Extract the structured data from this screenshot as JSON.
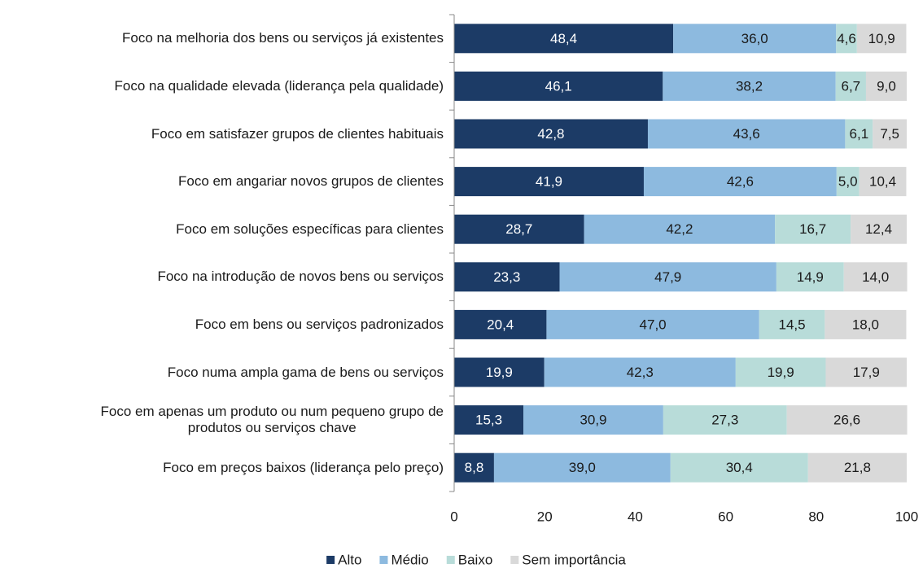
{
  "chart_data": {
    "type": "stacked_barh",
    "categories": [
      "Foco na melhoria dos bens ou serviços já existentes",
      "Foco na qualidade elevada (liderança pela qualidade)",
      "Foco em satisfazer grupos de clientes habituais",
      "Foco em angariar novos grupos de clientes",
      "Foco em soluções específicas para clientes",
      "Foco na introdução de novos bens ou serviços",
      "Foco em bens ou serviços padronizados",
      "Foco numa ampla gama de bens ou serviços",
      "Foco em apenas um produto ou num pequeno grupo de\nprodutos ou serviços chave",
      "Foco em preços baixos (liderança pelo preço)"
    ],
    "series": [
      {
        "name": "Alto",
        "color": "#1c3b66",
        "text_color": "#ffffff",
        "values": [
          48.4,
          46.1,
          42.8,
          41.9,
          28.7,
          23.3,
          20.4,
          19.9,
          15.3,
          8.8
        ],
        "value_labels": [
          "48,4",
          "46,1",
          "42,8",
          "41,9",
          "28,7",
          "23,3",
          "20,4",
          "19,9",
          "15,3",
          "8,8"
        ]
      },
      {
        "name": "Médio",
        "color": "#8dbadf",
        "text_color": "#1a1a1a",
        "values": [
          36.0,
          38.2,
          43.6,
          42.6,
          42.2,
          47.9,
          47.0,
          42.3,
          30.9,
          39.0
        ],
        "value_labels": [
          "36,0",
          "38,2",
          "43,6",
          "42,6",
          "42,2",
          "47,9",
          "47,0",
          "42,3",
          "30,9",
          "39,0"
        ]
      },
      {
        "name": "Baixo",
        "color": "#b8dcd9",
        "text_color": "#1a1a1a",
        "values": [
          4.6,
          6.7,
          6.1,
          5.0,
          16.7,
          14.9,
          14.5,
          19.9,
          27.3,
          30.4
        ],
        "value_labels": [
          "4,6",
          "6,7",
          "6,1",
          "5,0",
          "16,7",
          "14,9",
          "14,5",
          "19,9",
          "27,3",
          "30,4"
        ]
      },
      {
        "name": "Sem importância",
        "color": "#d9d9d9",
        "text_color": "#1a1a1a",
        "values": [
          10.9,
          9.0,
          7.5,
          10.4,
          12.4,
          14.0,
          18.0,
          17.9,
          26.6,
          21.8
        ],
        "value_labels": [
          "10,9",
          "9,0",
          "7,5",
          "10,4",
          "12,4",
          "14,0",
          "18,0",
          "17,9",
          "26,6",
          "21,8"
        ]
      }
    ],
    "xlim": [
      0,
      100
    ],
    "xticks": [
      0,
      20,
      40,
      60,
      80,
      100
    ],
    "legend": "bottom"
  }
}
